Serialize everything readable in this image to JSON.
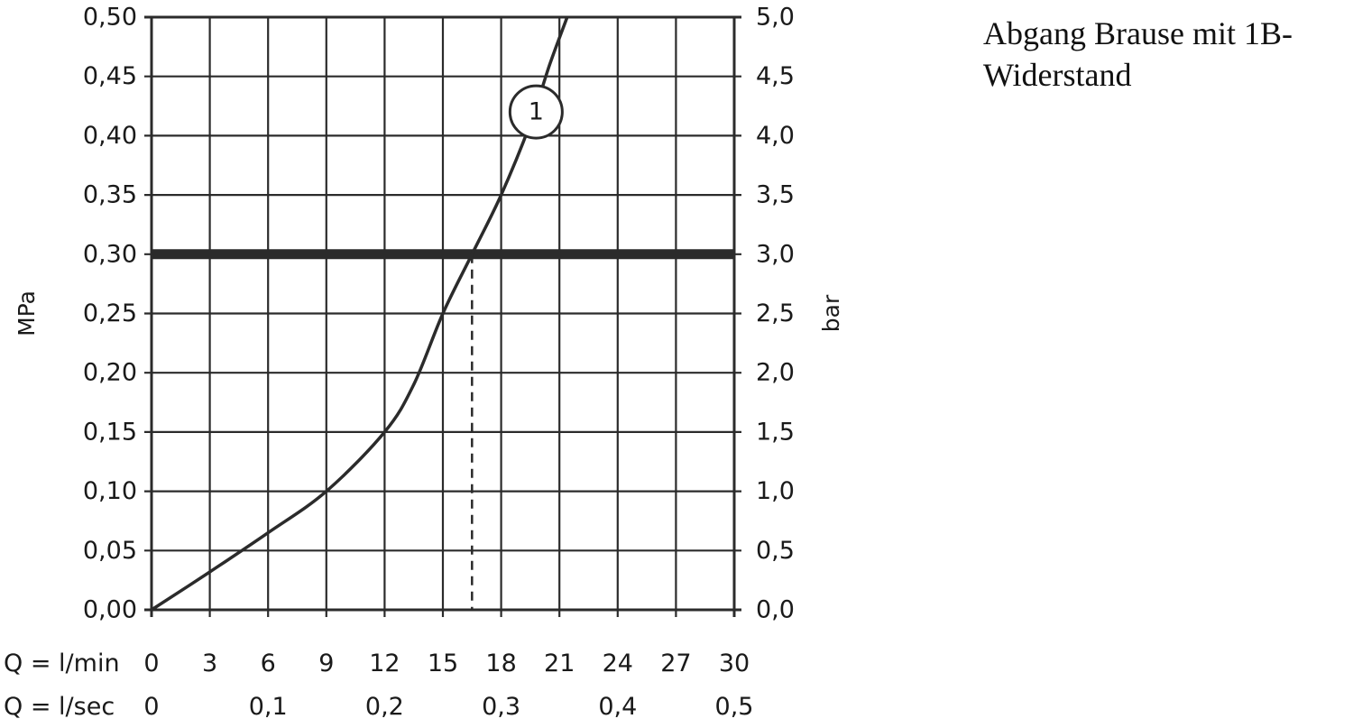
{
  "side_note": "Abgang Brause mit 1B-Widerstand",
  "chart_data": {
    "type": "line",
    "title": "",
    "ylabel": "MPa",
    "ylabel_right": "bar",
    "x_row_label": "Q = l/min",
    "x2_row_label": "Q = l/sec",
    "xlim": [
      0,
      30
    ],
    "ylim": [
      0,
      0.5
    ],
    "x_ticks": [
      "0",
      "3",
      "6",
      "9",
      "12",
      "15",
      "18",
      "21",
      "24",
      "27",
      "30"
    ],
    "x2_ticks": [
      {
        "x": 0,
        "label": "0"
      },
      {
        "x": 6,
        "label": "0,1"
      },
      {
        "x": 12,
        "label": "0,2"
      },
      {
        "x": 18,
        "label": "0,3"
      },
      {
        "x": 24,
        "label": "0,4"
      },
      {
        "x": 30,
        "label": "0,5"
      }
    ],
    "y_ticks": [
      "0,00",
      "0,05",
      "0,10",
      "0,15",
      "0,20",
      "0,25",
      "0,30",
      "0,35",
      "0,40",
      "0,45",
      "0,50"
    ],
    "y_ticks_right": [
      "0,0",
      "0,5",
      "1,0",
      "1,5",
      "2,0",
      "2,5",
      "3,0",
      "3,5",
      "4,0",
      "4,5",
      "5,0"
    ],
    "grid": true,
    "series": [
      {
        "label": "1",
        "x": [
          0,
          3,
          6,
          9,
          12,
          13.5,
          15,
          16.5,
          18,
          19.5,
          20.5,
          21.4
        ],
        "y": [
          0,
          0.032,
          0.065,
          0.1,
          0.15,
          0.19,
          0.25,
          0.3,
          0.35,
          0.41,
          0.46,
          0.5
        ]
      }
    ],
    "reference_line": {
      "y": 0.3,
      "label": "3,0 bar"
    },
    "marker": {
      "x": 16.5,
      "y": 0.3
    },
    "series_label_at": {
      "x": 19.8,
      "y": 0.42
    }
  }
}
